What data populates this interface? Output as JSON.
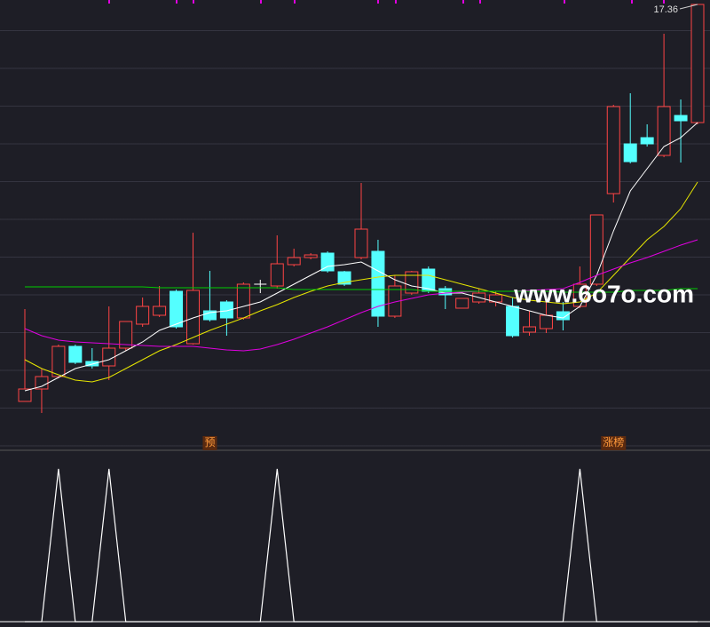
{
  "chart_data": [
    {
      "type": "candlestick",
      "open": [
        8.42,
        8.7,
        8.98,
        9.66,
        9.32,
        9.22,
        9.62,
        10.16,
        10.36,
        10.9,
        9.72,
        10.46,
        10.66,
        10.3,
        11.06,
        11.02,
        11.5,
        11.66,
        11.76,
        11.34,
        11.66,
        11.8,
        10.34,
        10.86,
        11.4,
        10.96,
        10.52,
        10.66,
        10.66,
        10.56,
        9.98,
        10.06,
        10.44,
        10.56,
        11.06,
        13.1,
        14.22,
        14.36,
        13.96,
        14.86,
        14.7
      ],
      "close": [
        8.7,
        8.98,
        9.66,
        9.3,
        9.22,
        9.62,
        10.22,
        10.56,
        10.56,
        10.1,
        10.92,
        10.26,
        10.3,
        11.06,
        11.06,
        11.52,
        11.66,
        11.72,
        11.36,
        11.06,
        12.3,
        10.34,
        11.02,
        11.34,
        10.9,
        10.82,
        10.74,
        10.86,
        10.82,
        9.9,
        10.1,
        10.36,
        10.26,
        11.06,
        12.62,
        15.06,
        13.82,
        14.22,
        15.06,
        14.74,
        17.36
      ],
      "high": [
        10.5,
        9.16,
        9.7,
        9.7,
        9.62,
        10.56,
        10.22,
        10.76,
        11.02,
        10.94,
        12.22,
        11.36,
        10.7,
        11.1,
        11.16,
        12.16,
        11.86,
        11.76,
        11.8,
        11.36,
        13.34,
        12.06,
        11.26,
        11.36,
        11.46,
        11.02,
        10.74,
        10.96,
        10.9,
        10.76,
        10.46,
        10.66,
        10.66,
        11.46,
        12.62,
        15.1,
        15.36,
        14.66,
        16.7,
        15.22,
        17.36
      ],
      "low": [
        8.42,
        8.16,
        8.94,
        9.26,
        9.16,
        8.9,
        9.56,
        10.1,
        10.32,
        10.06,
        9.7,
        10.22,
        9.9,
        10.26,
        10.86,
        10.96,
        11.46,
        11.62,
        11.32,
        11.02,
        11.62,
        10.1,
        10.3,
        10.82,
        10.86,
        10.5,
        10.52,
        10.62,
        10.56,
        9.86,
        9.9,
        9.96,
        10.02,
        10.52,
        11.02,
        12.9,
        13.78,
        14.16,
        13.92,
        13.8,
        14.66
      ],
      "up_color": "#ff4444",
      "down_color": "#54ffff",
      "flat_color": "#ffffff",
      "series": [
        {
          "color": "#ffffff",
          "values": [
            8.66,
            8.76,
            8.96,
            9.16,
            9.26,
            9.36,
            9.56,
            9.76,
            10.02,
            10.16,
            10.3,
            10.42,
            10.46,
            10.56,
            10.66,
            10.86,
            11.06,
            11.26,
            11.46,
            11.5,
            11.56,
            11.36,
            11.16,
            11.02,
            10.96,
            10.86,
            10.86,
            10.76,
            10.66,
            10.56,
            10.46,
            10.36,
            10.3,
            10.56,
            11.26,
            12.26,
            13.16,
            13.66,
            14.16,
            14.36,
            14.7
          ]
        },
        {
          "color": "#e6e600",
          "values": [
            9.36,
            9.16,
            9.02,
            8.9,
            8.86,
            8.96,
            9.16,
            9.36,
            9.56,
            9.7,
            9.86,
            10.02,
            10.16,
            10.3,
            10.46,
            10.6,
            10.76,
            10.9,
            11.02,
            11.1,
            11.16,
            11.22,
            11.26,
            11.26,
            11.26,
            11.16,
            11.06,
            10.96,
            10.86,
            10.76,
            10.7,
            10.66,
            10.62,
            10.66,
            10.86,
            11.26,
            11.66,
            12.06,
            12.36,
            12.76,
            13.36
          ]
        },
        {
          "color": "#e000e0",
          "values": [
            10.06,
            9.9,
            9.8,
            9.76,
            9.74,
            9.72,
            9.7,
            9.68,
            9.66,
            9.66,
            9.66,
            9.62,
            9.58,
            9.56,
            9.6,
            9.7,
            9.82,
            9.96,
            10.1,
            10.26,
            10.42,
            10.56,
            10.66,
            10.74,
            10.82,
            10.86,
            10.88,
            10.9,
            10.9,
            10.9,
            10.92,
            10.94,
            10.96,
            11.1,
            11.26,
            11.4,
            11.54,
            11.66,
            11.8,
            11.94,
            12.06
          ]
        },
        {
          "color": "#00cc00",
          "values": [
            11.0,
            11.0,
            11.0,
            11.0,
            11.0,
            11.0,
            11.0,
            11.0,
            10.98,
            10.98,
            10.98,
            10.98,
            10.98,
            10.98,
            10.98,
            10.98,
            10.94,
            10.94,
            10.94,
            10.94,
            10.94,
            10.94,
            10.94,
            10.94,
            10.9,
            10.9,
            10.9,
            10.9,
            10.9,
            10.9,
            10.9,
            10.9,
            10.88,
            10.88,
            10.88,
            10.88,
            10.92,
            10.92,
            10.92,
            10.96,
            10.96
          ]
        }
      ],
      "signals": [
        null,
        null,
        null,
        null,
        null,
        null,
        null,
        null,
        null,
        null,
        null,
        "预",
        null,
        null,
        null,
        null,
        null,
        null,
        null,
        null,
        null,
        null,
        null,
        null,
        null,
        null,
        null,
        null,
        null,
        null,
        null,
        null,
        null,
        null,
        null,
        "涨榜",
        null,
        null,
        null,
        null,
        null
      ],
      "watermark": "www.6o7o.com",
      "ylim": [
        7.36,
        17.46
      ]
    },
    {
      "type": "line",
      "color": "#ffffff",
      "values": [
        0,
        0,
        1,
        0,
        0,
        1,
        0,
        0,
        0,
        0,
        0,
        0,
        0,
        0,
        0,
        1,
        0,
        0,
        0,
        0,
        0,
        0,
        0,
        0,
        0,
        0,
        0,
        0,
        0,
        0,
        0,
        0,
        0,
        1,
        0,
        0,
        0,
        0,
        0,
        0,
        0
      ],
      "ylim": [
        0,
        1
      ]
    }
  ]
}
